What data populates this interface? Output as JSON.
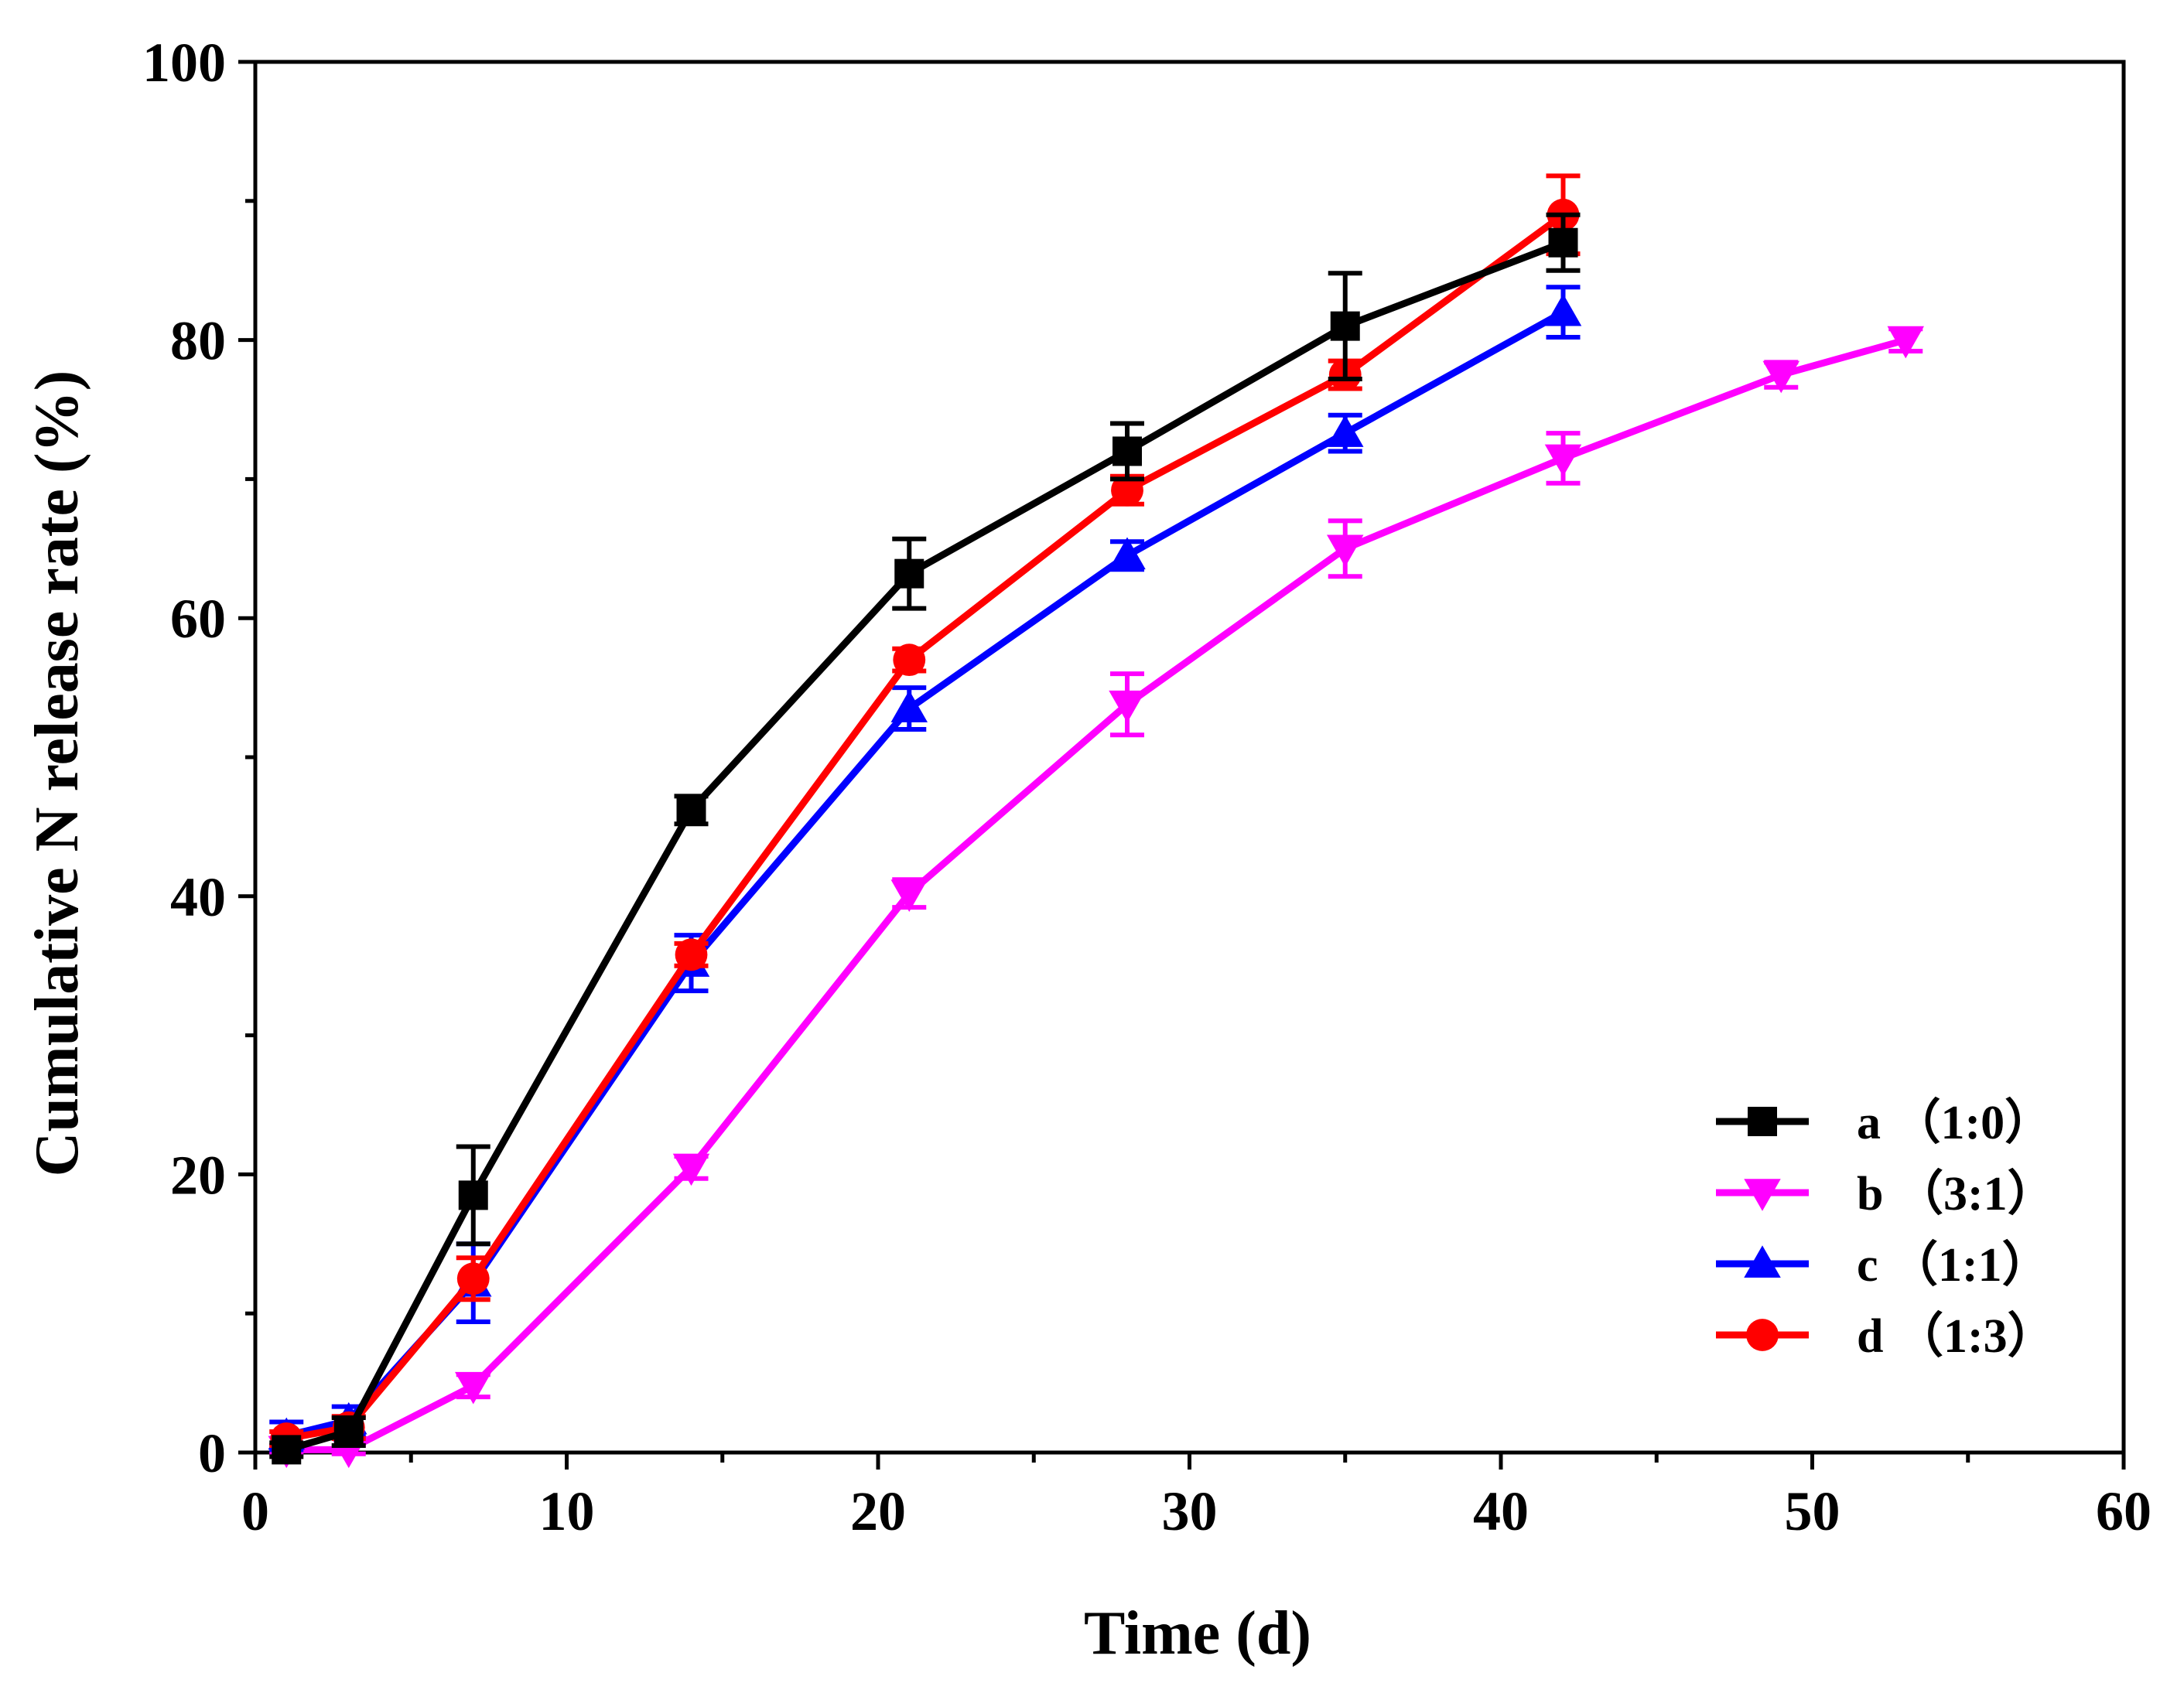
{
  "chart_data": {
    "type": "line",
    "title": "",
    "xlabel": "Time (d)",
    "ylabel": "Cumulative N release rate (%)",
    "xlim": [
      0,
      60
    ],
    "ylim": [
      0,
      100
    ],
    "x_ticks": [
      0,
      10,
      20,
      30,
      40,
      50,
      60
    ],
    "y_ticks": [
      0,
      20,
      40,
      60,
      80,
      100
    ],
    "x_tick_labels": [
      "0",
      "10",
      "20",
      "30",
      "40",
      "50",
      "60"
    ],
    "y_tick_labels": [
      "0",
      "20",
      "40",
      "60",
      "80",
      "100"
    ],
    "x_minor_step": 5,
    "y_minor_step": 10,
    "grid": false,
    "legend_position": "lower-right",
    "series": [
      {
        "name": "a （1:0）",
        "color": "#000000",
        "marker": "square",
        "x": [
          1,
          3,
          7,
          14,
          21,
          28,
          35,
          42
        ],
        "y": [
          0.2,
          1.5,
          18.5,
          46.2,
          63.2,
          72.0,
          81.0,
          87.0
        ],
        "err": [
          0.5,
          1.0,
          3.5,
          1.0,
          2.5,
          2.0,
          3.8,
          2.0
        ]
      },
      {
        "name": "b （3:1）",
        "color": "#ff00ff",
        "marker": "triangle-down",
        "x": [
          1,
          3,
          7,
          14,
          21,
          28,
          35,
          42,
          49,
          53
        ],
        "y": [
          0.2,
          0.2,
          4.8,
          20.5,
          40.2,
          53.8,
          65.0,
          71.5,
          77.5,
          80.0
        ],
        "err": [
          0.3,
          0.3,
          0.8,
          0.8,
          1.0,
          2.2,
          2.0,
          1.8,
          0.9,
          0.8
        ]
      },
      {
        "name": "c （1:1）",
        "color": "#0000ff",
        "marker": "triangle-up",
        "x": [
          1,
          3,
          7,
          14,
          21,
          28,
          35,
          42
        ],
        "y": [
          1.2,
          2.3,
          12.2,
          35.2,
          53.5,
          64.5,
          73.3,
          82.0
        ],
        "err": [
          1.0,
          1.0,
          2.8,
          2.0,
          1.5,
          1.0,
          1.3,
          1.8
        ]
      },
      {
        "name": "d （1:3）",
        "color": "#ff0000",
        "marker": "circle",
        "x": [
          1,
          3,
          7,
          14,
          21,
          28,
          35,
          42
        ],
        "y": [
          1.0,
          1.8,
          12.5,
          35.8,
          57.0,
          69.2,
          77.5,
          89.0
        ],
        "err": [
          0.5,
          0.8,
          1.5,
          0.8,
          0.8,
          1.0,
          1.0,
          2.8
        ]
      }
    ]
  }
}
